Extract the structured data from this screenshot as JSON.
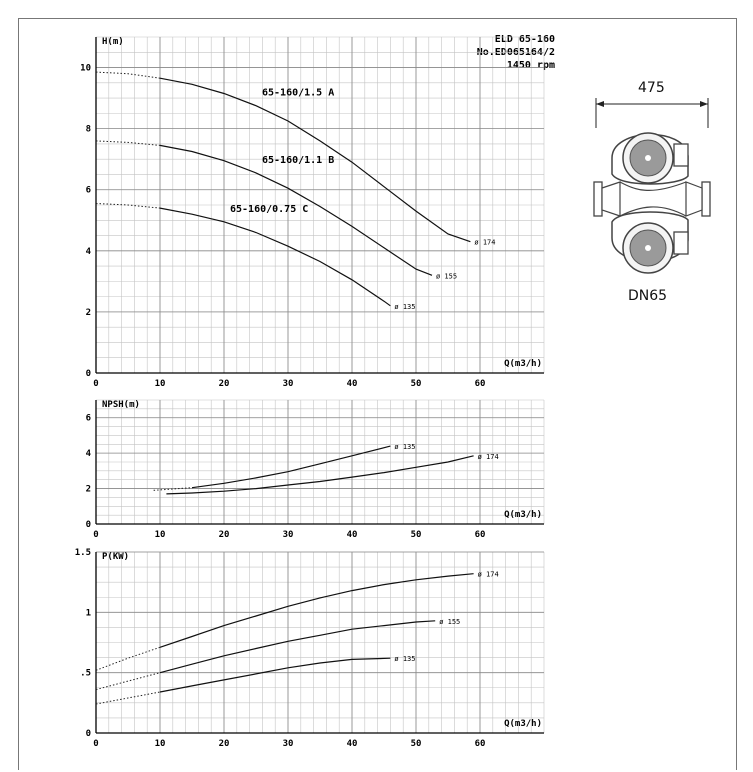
{
  "header": {
    "model": "ELD 65-160",
    "number": "No.ED065164/2",
    "speed": "1450 rpm"
  },
  "drawing": {
    "width_label": "475",
    "flange_label": "DN65"
  },
  "chart_data": [
    {
      "type": "line",
      "ylabel": "H(m)",
      "xlabel": "Q(m3/h)",
      "xlim": [
        0,
        70
      ],
      "ylim": [
        0,
        11
      ],
      "xticks": [
        0,
        10,
        20,
        30,
        40,
        50,
        60
      ],
      "yticks": [
        0,
        2,
        4,
        6,
        8,
        10
      ],
      "grid": true,
      "series": [
        {
          "name": "65-160/1.5 A",
          "end_label": "ø 174",
          "x": [
            0,
            5,
            10,
            15,
            20,
            25,
            30,
            35,
            40,
            45,
            50,
            55,
            58.5
          ],
          "y": [
            9.85,
            9.8,
            9.65,
            9.45,
            9.15,
            8.75,
            8.25,
            7.6,
            6.9,
            6.1,
            5.3,
            4.55,
            4.3
          ]
        },
        {
          "name": "65-160/1.1 B",
          "end_label": "ø 155",
          "x": [
            0,
            5,
            10,
            15,
            20,
            25,
            30,
            35,
            40,
            45,
            50,
            52.5
          ],
          "y": [
            7.6,
            7.55,
            7.45,
            7.25,
            6.95,
            6.55,
            6.05,
            5.45,
            4.8,
            4.1,
            3.4,
            3.2
          ]
        },
        {
          "name": "65-160/0.75 C",
          "end_label": "ø 135",
          "x": [
            0,
            5,
            10,
            15,
            20,
            25,
            30,
            35,
            40,
            45,
            46
          ],
          "y": [
            5.55,
            5.5,
            5.4,
            5.2,
            4.95,
            4.6,
            4.15,
            3.65,
            3.05,
            2.35,
            2.2
          ]
        }
      ]
    },
    {
      "type": "line",
      "ylabel": "NPSH(m)",
      "xlabel": "Q(m3/h)",
      "xlim": [
        0,
        70
      ],
      "ylim": [
        0,
        7
      ],
      "xticks": [
        0,
        10,
        20,
        30,
        40,
        50,
        60
      ],
      "yticks": [
        0,
        2,
        4,
        6
      ],
      "grid": true,
      "series": [
        {
          "name": "",
          "end_label": "ø 135",
          "x": [
            9,
            15,
            20,
            25,
            30,
            35,
            40,
            46
          ],
          "y": [
            1.9,
            2.05,
            2.3,
            2.6,
            2.95,
            3.4,
            3.85,
            4.4
          ]
        },
        {
          "name": "",
          "end_label": "ø 174",
          "x": [
            11,
            15,
            20,
            25,
            30,
            35,
            40,
            45,
            50,
            55,
            59
          ],
          "y": [
            1.7,
            1.75,
            1.85,
            2.0,
            2.2,
            2.4,
            2.65,
            2.9,
            3.2,
            3.5,
            3.85
          ]
        }
      ]
    },
    {
      "type": "line",
      "ylabel": "P(KW)",
      "xlabel": "Q(m3/h)",
      "xlim": [
        0,
        70
      ],
      "ylim": [
        0,
        1.5
      ],
      "xticks": [
        0,
        10,
        20,
        30,
        40,
        50,
        60
      ],
      "yticks": [
        0,
        0.5,
        1,
        1.5
      ],
      "ytick_labels": [
        "0",
        ".5",
        "1",
        "1.5"
      ],
      "grid": true,
      "series": [
        {
          "name": "",
          "end_label": "ø 174",
          "x": [
            0,
            5,
            10,
            15,
            20,
            25,
            30,
            35,
            40,
            45,
            50,
            55,
            59
          ],
          "y": [
            0.52,
            0.62,
            0.71,
            0.8,
            0.89,
            0.97,
            1.05,
            1.12,
            1.18,
            1.23,
            1.27,
            1.3,
            1.32
          ]
        },
        {
          "name": "",
          "end_label": "ø 155",
          "x": [
            0,
            5,
            10,
            15,
            20,
            25,
            30,
            35,
            40,
            45,
            50,
            53
          ],
          "y": [
            0.36,
            0.43,
            0.5,
            0.57,
            0.64,
            0.7,
            0.76,
            0.81,
            0.86,
            0.89,
            0.92,
            0.93
          ]
        },
        {
          "name": "",
          "end_label": "ø 135",
          "x": [
            0,
            5,
            10,
            15,
            20,
            25,
            30,
            35,
            40,
            46
          ],
          "y": [
            0.24,
            0.29,
            0.34,
            0.39,
            0.44,
            0.49,
            0.54,
            0.58,
            0.61,
            0.62
          ]
        }
      ]
    }
  ]
}
